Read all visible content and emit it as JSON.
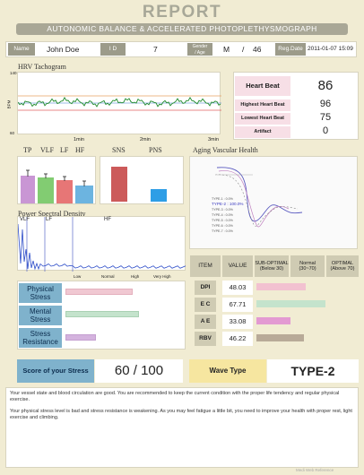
{
  "header": {
    "title": "REPORT",
    "subtitle": "AUTONOMIC BALANCE & ACCELERATED PHOTOPLETHYSMOGRAPH"
  },
  "patient": {
    "name_label": "Name",
    "name": "John Doe",
    "id_label": "I D",
    "id": "7",
    "gender_age_label_1": "Gender",
    "gender_age_label_2": "/ Age",
    "gender": "M",
    "age_sep": "/",
    "age": "46",
    "reg_date_label": "Reg.Date",
    "reg_date": "2011-01-07 15:09"
  },
  "hrv": {
    "section_title": "HRV Tachogram",
    "y_top": "140",
    "y_unit": "BPM",
    "y_bottom": "60",
    "x_ticks": [
      "1min",
      "2min",
      "3min"
    ]
  },
  "heart": {
    "title": "Heart Beat",
    "value": "86",
    "rows": [
      {
        "label": "Highest Heart Beat",
        "value": "96"
      },
      {
        "label": "Lowest Heart Beat",
        "value": "75"
      },
      {
        "label": "Artifact",
        "value": "0"
      }
    ]
  },
  "bars_left": {
    "labels": [
      "TP",
      "VLF",
      "LF",
      "HF"
    ]
  },
  "bars_right": {
    "labels": [
      "SNS",
      "PNS"
    ]
  },
  "aging": {
    "section_title": "Aging Vascular Health",
    "types": [
      "TYPE-1 : 0.0%",
      "TYPE-2 : 100.0%",
      "TYPE-3 : 0.0%",
      "TYPE-4 : 0.0%",
      "TYPE-5 : 0.0%",
      "TYPE-6 : 0.0%",
      "TYPE-7 : 0.0%"
    ]
  },
  "psd": {
    "section_title": "Power Spectral Density",
    "bands": [
      "VLF",
      "LF",
      "HF"
    ]
  },
  "stress_scale": {
    "labels": [
      "Low",
      "Normal",
      "High",
      "Very High"
    ]
  },
  "stress_items": [
    {
      "line1": "Physical",
      "line2": "Stress",
      "level": 0.58
    },
    {
      "line1": "Mental",
      "line2": "Stress",
      "level": 0.63
    },
    {
      "line1": "Stress",
      "line2": "Resistance",
      "level": 0.26
    }
  ],
  "apg": {
    "headers": {
      "item": "ITEM",
      "value": "VALUE",
      "sub1": "SUB-OPTIMAL",
      "sub2": "(Below 30)",
      "norm1": "Normal",
      "norm2": "(30~70)",
      "opt1": "OPTIMAL",
      "opt2": "(Above 70)"
    },
    "rows": [
      {
        "name": "DPI",
        "value": "48.03",
        "color": "#f2c1d0"
      },
      {
        "name": "E C",
        "value": "67.71",
        "color": "#c4e3cc"
      },
      {
        "name": "A E",
        "value": "33.08",
        "color": "#e39ad2"
      },
      {
        "name": "RBV",
        "value": "46.22",
        "color": "#b8aa98"
      }
    ]
  },
  "score": {
    "label": "Score of your Stress",
    "value": "60 / 100"
  },
  "wave": {
    "label": "Wave Type",
    "value": "TYPE-2"
  },
  "comments": [
    "Your vessel state and blood circulation are good. You are recommended to keep the current condition with the proper life tendency and regular physical exercise.",
    "Your physical stress level is bad and stress resistance is weakening. As you may feel fatigue a little bit, you need to improve your health with proper rest, light exercise and climbing."
  ],
  "footer": "Medi Web Reference",
  "colors": {
    "background": "#f1ecd3",
    "header_gray": "#a9a796",
    "tp": "#c996d4",
    "vlf": "#82cc72",
    "lf": "#e77676",
    "hf": "#6cb4e0",
    "sns": "#cc5a5a",
    "pns": "#2e9ee6"
  }
}
